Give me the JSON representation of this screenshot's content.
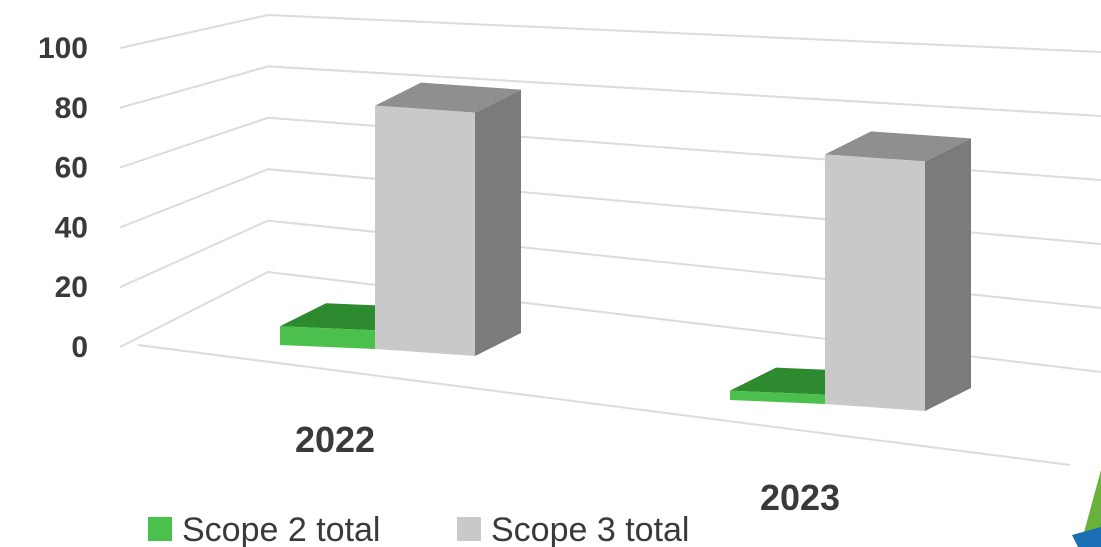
{
  "chart_data": {
    "type": "bar",
    "categories": [
      "2022",
      "2023"
    ],
    "series": [
      {
        "name": "Scope 2 total",
        "values": [
          6,
          3
        ]
      },
      {
        "name": "Scope 3 total",
        "values": [
          78,
          80
        ]
      }
    ],
    "ylim": [
      0,
      100
    ],
    "yticks": [
      "0",
      "20",
      "40",
      "60",
      "80",
      "100"
    ],
    "grid": true,
    "legend_position": "bottom-left",
    "colors": {
      "Scope 2 total": {
        "front": "#4cc04c",
        "top": "#2e8a2e",
        "side": "#37a037"
      },
      "Scope 3 total": {
        "front": "#c9c9c9",
        "top": "#8f8f8f",
        "side": "#7b7b7b"
      },
      "gridline": "#dcdcdc",
      "text": "#3a3a3a"
    }
  },
  "decorations": {
    "corner_logo": {
      "icon": "logo-corner-icon",
      "colors": [
        "#6ab23c",
        "#1a6fb5"
      ]
    }
  }
}
